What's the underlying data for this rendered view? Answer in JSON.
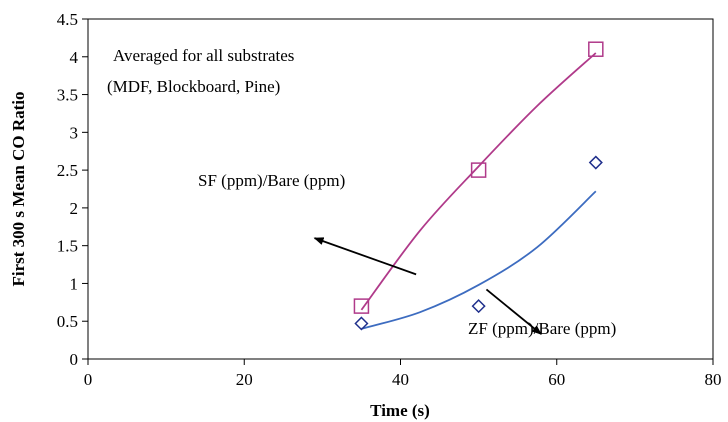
{
  "chart_data": {
    "type": "scatter",
    "xlabel": "Time (s)",
    "ylabel": "First 300 s Mean CO Ratio",
    "xlim": [
      0,
      80
    ],
    "ylim": [
      0,
      4.5
    ],
    "xticks": [
      0,
      20,
      40,
      60,
      80
    ],
    "yticks": [
      0,
      0.5,
      1,
      1.5,
      2,
      2.5,
      3,
      3.5,
      4,
      4.5
    ],
    "ytick_labels": [
      "0",
      "0.5",
      "1",
      "1.5",
      "2",
      "2.5",
      "3",
      "3.5",
      "4",
      "4.5"
    ],
    "grid": false,
    "series": [
      {
        "name": "SF (ppm)/Bare (ppm)",
        "marker": "square",
        "color": "#b03a8a",
        "x": [
          35,
          50,
          65
        ],
        "y": [
          0.7,
          2.5,
          4.1
        ],
        "trend": [
          [
            35,
            0.65
          ],
          [
            42.5,
            1.7
          ],
          [
            50,
            2.55
          ],
          [
            57.5,
            3.35
          ],
          [
            65,
            4.05
          ]
        ]
      },
      {
        "name": "ZF (ppm)/Bare (ppm)",
        "marker": "diamond",
        "color": "#1f2f8c",
        "trend_color": "#3d6cc0",
        "x": [
          35,
          50,
          65
        ],
        "y": [
          0.47,
          0.7,
          2.6
        ],
        "trend": [
          [
            35,
            0.4
          ],
          [
            42.5,
            0.62
          ],
          [
            50,
            0.98
          ],
          [
            57.5,
            1.48
          ],
          [
            65,
            2.22
          ]
        ]
      }
    ],
    "annotations": [
      {
        "text": "Averaged for all substrates"
      },
      {
        "text": "(MDF, Blockboard, Pine)"
      },
      {
        "text": "SF (ppm)/Bare (ppm)",
        "arrow_from": [
          42,
          1.12
        ],
        "arrow_to": [
          29,
          1.6
        ]
      },
      {
        "text": "ZF (ppm)/Bare (ppm)",
        "arrow_from": [
          51,
          0.92
        ],
        "arrow_to": [
          58,
          0.33
        ]
      }
    ]
  }
}
